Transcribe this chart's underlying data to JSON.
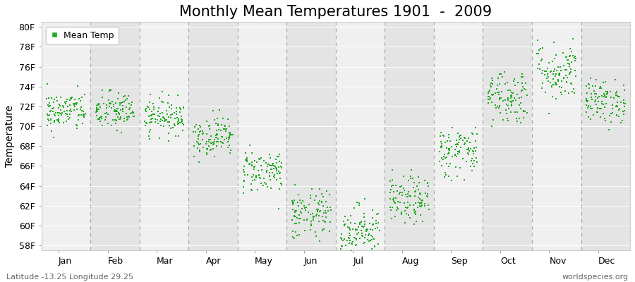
{
  "title": "Monthly Mean Temperatures 1901  -  2009",
  "ylabel": "Temperature",
  "xlabel_labels": [
    "Jan",
    "Feb",
    "Mar",
    "Apr",
    "May",
    "Jun",
    "Jul",
    "Aug",
    "Sep",
    "Oct",
    "Nov",
    "Dec"
  ],
  "ytick_labels": [
    "58F",
    "60F",
    "62F",
    "64F",
    "66F",
    "68F",
    "70F",
    "72F",
    "74F",
    "76F",
    "78F",
    "80F"
  ],
  "ytick_values": [
    58,
    60,
    62,
    64,
    66,
    68,
    70,
    72,
    74,
    76,
    78,
    80
  ],
  "ylim": [
    57.5,
    80.5
  ],
  "dot_color": "#22aa22",
  "dot_size": 3,
  "background_color": "#ffffff",
  "plot_bg_color_even": "#f0f0f0",
  "plot_bg_color_odd": "#e4e4e4",
  "title_fontsize": 15,
  "axis_fontsize": 10,
  "tick_fontsize": 9,
  "legend_label": "Mean Temp",
  "footer_left": "Latitude -13.25 Longitude 29.25",
  "footer_right": "worldspecies.org",
  "monthly_means": [
    71.5,
    71.5,
    71.0,
    69.0,
    65.5,
    61.0,
    59.5,
    62.5,
    67.5,
    73.0,
    75.5,
    72.5
  ],
  "monthly_stds": [
    1.0,
    1.0,
    0.9,
    1.0,
    1.1,
    1.3,
    1.3,
    1.2,
    1.3,
    1.4,
    1.5,
    1.1
  ],
  "n_years": 109,
  "dashed_line_color": "#999999"
}
